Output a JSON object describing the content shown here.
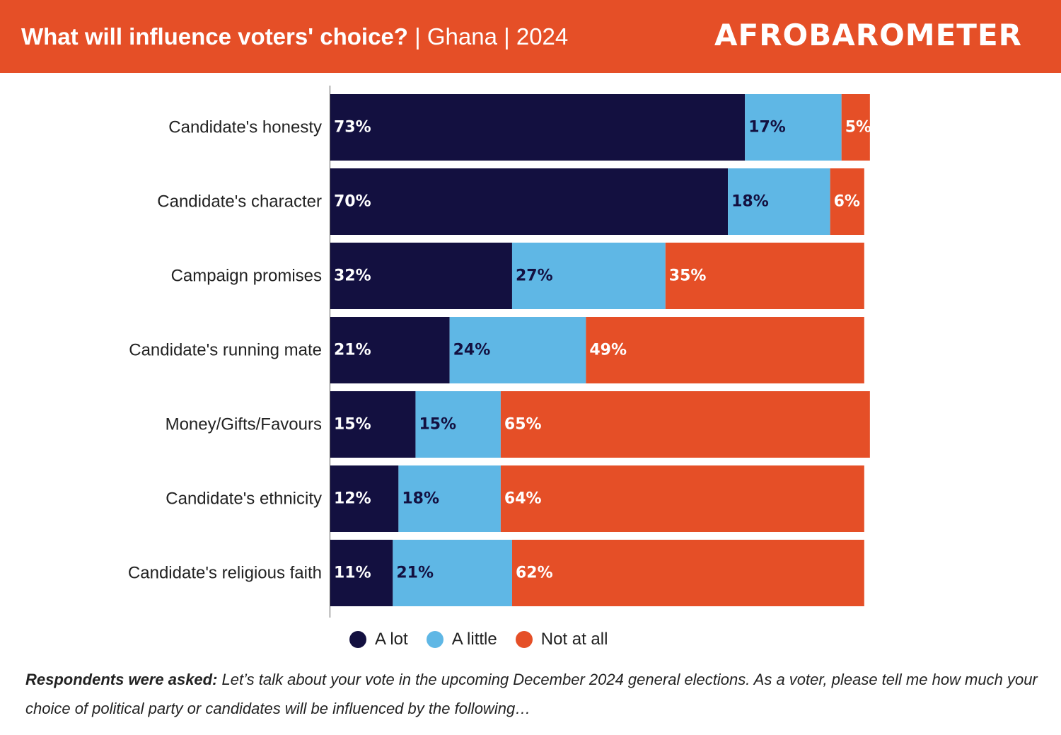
{
  "header": {
    "title_main": "What will influence voters' choice?",
    "title_rest": " | Ghana | 2024",
    "logo_text": "AFROBAROMETER"
  },
  "colors": {
    "header_bg": "#e54f27",
    "a_lot": "#131040",
    "a_little": "#5fb7e5",
    "not_at_all": "#e54f27"
  },
  "chart_data": {
    "type": "bar",
    "orientation": "horizontal",
    "stacked": true,
    "categories": [
      "Candidate's honesty",
      "Candidate's character",
      "Campaign promises",
      "Candidate's running mate",
      "Money/Gifts/Favours",
      "Candidate's ethnicity",
      "Candidate's religious faith"
    ],
    "series": [
      {
        "name": "A lot",
        "color": "#131040",
        "label_color": "#ffffff",
        "values": [
          73,
          70,
          32,
          21,
          15,
          12,
          11
        ]
      },
      {
        "name": "A little",
        "color": "#5fb7e5",
        "label_color": "#131040",
        "values": [
          17,
          18,
          27,
          24,
          15,
          18,
          21
        ]
      },
      {
        "name": "Not at all",
        "color": "#e54f27",
        "label_color": "#ffffff",
        "values": [
          5,
          6,
          35,
          49,
          65,
          64,
          62
        ]
      }
    ],
    "value_suffix": "%",
    "xlim": [
      0,
      100
    ],
    "grid": false,
    "legend_position": "bottom"
  },
  "footnote": {
    "lead": "Respondents were asked:",
    "text": " Let’s talk about your vote in the upcoming December 2024 general elections. As a voter, please tell me how much your choice of political party or candidates will be influenced by the following…"
  }
}
